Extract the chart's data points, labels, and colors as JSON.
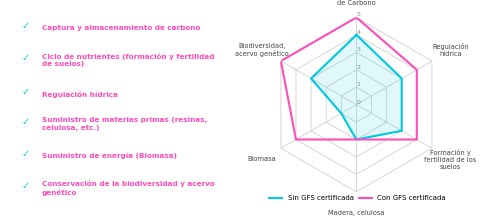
{
  "left_panel": {
    "items": [
      "Captura y almacenamiento de carbono",
      "Ciclo de nutrientes (formación y fertilidad\nde suelos)",
      "Regulación hídrica",
      "Suministro de materias primas (resinas,\ncelulosa, etc.)",
      "Suministro de energía (Biomasa)",
      "Conservación de la biodiversidad y acervo\ngenético"
    ],
    "check_color": "#00c8e0",
    "text_color": "#ff4db8",
    "bg_color": "#ffffff",
    "border_color": "#00c8e0"
  },
  "radar": {
    "categories": [
      "Captura y\nalmacenamiento\nde Carbono",
      "Regulación\nhídrica",
      "Formación y\nfertilidad de los\nsuelos",
      "Madera, celulosa",
      "Biomasa",
      "Biodiversidad,\nacervo genético"
    ],
    "sin_gfs": [
      4,
      3,
      3,
      2,
      1,
      3
    ],
    "con_gfs": [
      5,
      4,
      4,
      2,
      4,
      5
    ],
    "max_val": 5,
    "ticks": [
      0,
      1,
      2,
      3,
      4,
      5
    ],
    "color_sin": "#00c8e0",
    "color_con": "#ff4db8",
    "grid_color": "#d0d0d0",
    "bg_color": "#ffffff",
    "border_color": "#00c8e0",
    "legend_sin": "Sin GFS certificada",
    "legend_con": "Con GFS certificada"
  }
}
